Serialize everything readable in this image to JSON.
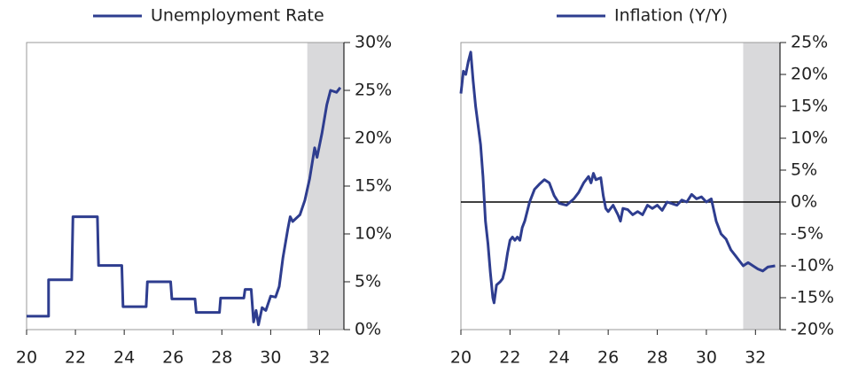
{
  "chart_data": [
    {
      "type": "line",
      "x": [
        20.0,
        20.9,
        20.9,
        21.85,
        21.9,
        22.9,
        22.95,
        23.9,
        23.95,
        24.9,
        24.95,
        25.9,
        25.95,
        26.9,
        26.95,
        27.9,
        27.95,
        28.9,
        28.95,
        29.2,
        29.3,
        29.4,
        29.5,
        29.65,
        29.8,
        30.0,
        30.2,
        30.35,
        30.5,
        30.7,
        30.8,
        30.9,
        31.2,
        31.4,
        31.6,
        31.8,
        31.9,
        32.1,
        32.3,
        32.45,
        32.7,
        32.85
      ],
      "series": [
        {
          "name": "Unemployment Rate",
          "color": "#2e3d8f",
          "values": [
            1.4,
            1.4,
            5.2,
            5.2,
            11.8,
            11.8,
            6.7,
            6.7,
            2.4,
            2.4,
            5.0,
            5.0,
            3.2,
            3.2,
            1.8,
            1.8,
            3.3,
            3.3,
            4.2,
            4.2,
            0.8,
            2.0,
            0.5,
            2.3,
            2.0,
            3.5,
            3.4,
            4.5,
            7.5,
            10.5,
            11.8,
            11.3,
            12.0,
            13.5,
            15.8,
            19.0,
            18.0,
            20.5,
            23.5,
            25.0,
            24.8,
            25.3
          ]
        }
      ],
      "xlim": [
        20,
        33
      ],
      "xticks": [
        20,
        22,
        24,
        26,
        28,
        30,
        32
      ],
      "ylim": [
        0,
        30
      ],
      "yticks": [
        {
          "value": 0,
          "label": "0%"
        },
        {
          "value": 5,
          "label": "5%"
        },
        {
          "value": 10,
          "label": "10%"
        },
        {
          "value": 15,
          "label": "15%"
        },
        {
          "value": 20,
          "label": "20%"
        },
        {
          "value": 25,
          "label": "25%"
        },
        {
          "value": 30,
          "label": "30%"
        }
      ],
      "shaded_range": [
        31.5,
        33
      ],
      "shade_color": "#d9d9db",
      "zero_line": false
    },
    {
      "type": "line",
      "x": [
        20.0,
        20.1,
        20.2,
        20.3,
        20.4,
        20.5,
        20.6,
        20.8,
        20.9,
        21.0,
        21.1,
        21.2,
        21.3,
        21.35,
        21.45,
        21.6,
        21.7,
        21.8,
        21.9,
        22.0,
        22.1,
        22.2,
        22.3,
        22.4,
        22.5,
        22.6,
        22.8,
        23.0,
        23.2,
        23.4,
        23.6,
        23.8,
        24.0,
        24.3,
        24.6,
        24.8,
        25.0,
        25.2,
        25.3,
        25.4,
        25.5,
        25.7,
        25.8,
        25.9,
        26.0,
        26.2,
        26.4,
        26.5,
        26.6,
        26.8,
        27.0,
        27.2,
        27.4,
        27.6,
        27.8,
        28.0,
        28.2,
        28.4,
        28.8,
        29.0,
        29.2,
        29.4,
        29.6,
        29.8,
        30.0,
        30.2,
        30.4,
        30.6,
        30.8,
        31.0,
        31.2,
        31.4,
        31.5,
        31.7,
        31.9,
        32.1,
        32.3,
        32.5,
        32.8
      ],
      "series": [
        {
          "name": "Inflation (Y/Y)",
          "color": "#2e3d8f",
          "values": [
            17,
            20.5,
            20,
            22,
            23.5,
            19,
            15,
            9,
            4,
            -3,
            -6.5,
            -11,
            -15,
            -15.8,
            -13,
            -12.5,
            -12,
            -10.5,
            -8,
            -6,
            -5.5,
            -6,
            -5.5,
            -6,
            -4,
            -3,
            0,
            2,
            2.8,
            3.5,
            3,
            1,
            -0.2,
            -0.5,
            0.5,
            1.5,
            3,
            4,
            3,
            4.5,
            3.5,
            3.8,
            1,
            -1,
            -1.5,
            -0.5,
            -2,
            -3,
            -1,
            -1.2,
            -2,
            -1.5,
            -2,
            -0.5,
            -1,
            -0.5,
            -1.3,
            0,
            -0.5,
            0.3,
            0,
            1.2,
            0.5,
            0.8,
            0,
            0.5,
            -3,
            -5,
            -5.8,
            -7.5,
            -8.5,
            -9.5,
            -10,
            -9.5,
            -10,
            -10.5,
            -10.8,
            -10.2,
            -10
          ]
        }
      ],
      "xlim": [
        20,
        33
      ],
      "xticks": [
        20,
        22,
        24,
        26,
        28,
        30,
        32
      ],
      "ylim": [
        -20,
        25
      ],
      "yticks": [
        {
          "value": -20,
          "label": "-20%"
        },
        {
          "value": -15,
          "label": "-15%"
        },
        {
          "value": -10,
          "label": "-10%"
        },
        {
          "value": -5,
          "label": "-5%"
        },
        {
          "value": 0,
          "label": "0%"
        },
        {
          "value": 5,
          "label": "5%"
        },
        {
          "value": 10,
          "label": "10%"
        },
        {
          "value": 15,
          "label": "15%"
        },
        {
          "value": 20,
          "label": "20%"
        },
        {
          "value": 25,
          "label": "25%"
        }
      ],
      "shaded_range": [
        31.5,
        33
      ],
      "shade_color": "#d9d9db",
      "zero_line": true
    }
  ]
}
